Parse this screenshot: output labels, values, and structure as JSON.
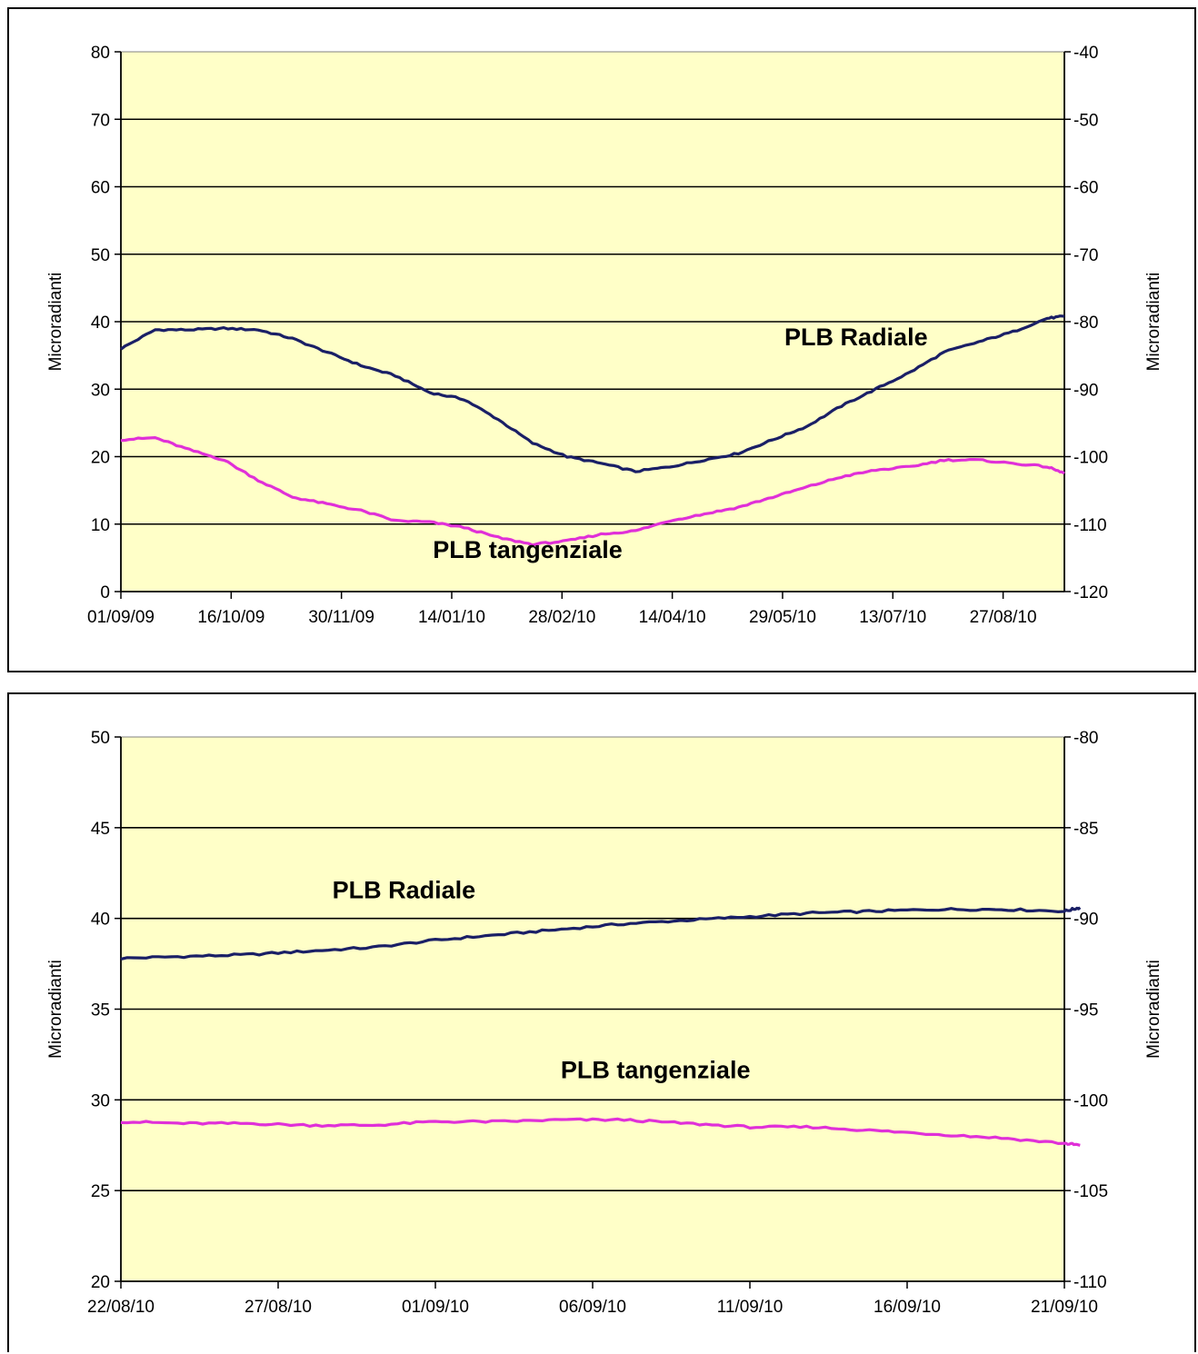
{
  "chart_data": [
    {
      "type": "line",
      "ylabel_left": "Microradianti",
      "ylabel_right": "Microradianti",
      "ylim_left": [
        0,
        80
      ],
      "ylim_right": [
        -120,
        -40
      ],
      "yticks_left": [
        "0",
        "10",
        "20",
        "30",
        "40",
        "50",
        "60",
        "70",
        "80"
      ],
      "yticks_right": [
        "-120",
        "-110",
        "-100",
        "-90",
        "-80",
        "-70",
        "-60",
        "-50",
        "-40"
      ],
      "x_range": [
        "01/09/09",
        "21/09/10"
      ],
      "xticks": [
        "01/09/09",
        "16/10/09",
        "30/11/09",
        "14/01/10",
        "28/02/10",
        "14/04/10",
        "29/05/10",
        "13/07/10",
        "27/08/10"
      ],
      "grid": true,
      "plot_background": "#ffffc8",
      "series": [
        {
          "name": "PLB Radiale",
          "color": "#1a1f66",
          "x": [
            "01/09/09",
            "15/09/09",
            "29/09/09",
            "13/10/09",
            "27/10/09",
            "10/11/09",
            "24/11/09",
            "08/12/09",
            "22/12/09",
            "05/01/10",
            "19/01/10",
            "02/02/10",
            "16/02/10",
            "02/03/10",
            "16/03/10",
            "30/03/10",
            "13/04/10",
            "27/04/10",
            "11/05/10",
            "25/05/10",
            "08/06/10",
            "22/06/10",
            "06/07/10",
            "20/07/10",
            "03/08/10",
            "17/08/10",
            "31/08/10",
            "14/09/10",
            "21/09/10"
          ],
          "y": [
            36,
            38.8,
            38.8,
            39,
            38.8,
            37.5,
            35.5,
            33.5,
            32,
            29.5,
            28.5,
            25.5,
            22,
            20,
            19,
            17.8,
            18.5,
            19.5,
            20.5,
            22.5,
            24.5,
            27.5,
            30,
            32.5,
            35.5,
            37,
            38.5,
            40.5,
            40.8
          ]
        },
        {
          "name": "PLB tangenziale",
          "color": "#e030d8",
          "x": [
            "01/09/09",
            "15/09/09",
            "29/09/09",
            "13/10/09",
            "27/10/09",
            "10/11/09",
            "24/11/09",
            "08/12/09",
            "22/12/09",
            "05/01/10",
            "19/01/10",
            "02/02/10",
            "16/02/10",
            "02/03/10",
            "16/03/10",
            "30/03/10",
            "13/04/10",
            "27/04/10",
            "11/05/10",
            "25/05/10",
            "08/06/10",
            "22/06/10",
            "06/07/10",
            "20/07/10",
            "03/08/10",
            "17/08/10",
            "31/08/10",
            "14/09/10",
            "21/09/10"
          ],
          "y": [
            22.5,
            22.8,
            21,
            19.5,
            16.5,
            14,
            13,
            12,
            10.5,
            10.3,
            9.5,
            8,
            7,
            7.5,
            8.5,
            9,
            10.5,
            11.5,
            12.5,
            14,
            15.5,
            17,
            18,
            18.5,
            19.5,
            19.5,
            19,
            18.5,
            17.5
          ]
        }
      ],
      "annotations": [
        {
          "text": "PLB Radiale",
          "x": "28/06/10",
          "y": 36.5
        },
        {
          "text": "PLB tangenziale",
          "x": "14/02/10",
          "y": 5
        }
      ]
    },
    {
      "type": "line",
      "ylabel_left": "Microradianti",
      "ylabel_right": "Microradianti",
      "ylim_left": [
        20,
        50
      ],
      "ylim_right": [
        -110,
        -80
      ],
      "yticks_left": [
        "20",
        "25",
        "30",
        "35",
        "40",
        "45",
        "50"
      ],
      "yticks_right": [
        "-110",
        "-105",
        "-100",
        "-95",
        "-90",
        "-85",
        "-80"
      ],
      "x_range": [
        "22/08/10",
        "21/09/10"
      ],
      "xticks": [
        "22/08/10",
        "27/08/10",
        "01/09/10",
        "06/09/10",
        "11/09/10",
        "16/09/10",
        "21/09/10"
      ],
      "grid": true,
      "plot_background": "#ffffc8",
      "series": [
        {
          "name": "PLB Radiale",
          "color": "#1a1f66",
          "x": [
            "22/08/10",
            "24/08/10",
            "26/08/10",
            "28/08/10",
            "30/08/10",
            "01/09/10",
            "03/09/10",
            "05/09/10",
            "07/09/10",
            "09/09/10",
            "11/09/10",
            "13/09/10",
            "15/09/10",
            "17/09/10",
            "19/09/10",
            "21/09/10",
            "21/09/10 12:00"
          ],
          "y": [
            37.8,
            37.9,
            38.0,
            38.2,
            38.4,
            38.8,
            39.1,
            39.4,
            39.7,
            39.9,
            40.1,
            40.3,
            40.4,
            40.5,
            40.5,
            40.4,
            40.6
          ]
        },
        {
          "name": "PLB tangenziale",
          "color": "#e030d8",
          "x": [
            "22/08/10",
            "24/08/10",
            "26/08/10",
            "28/08/10",
            "30/08/10",
            "01/09/10",
            "03/09/10",
            "05/09/10",
            "07/09/10",
            "09/09/10",
            "11/09/10",
            "13/09/10",
            "15/09/10",
            "17/09/10",
            "19/09/10",
            "21/09/10",
            "21/09/10 12:00"
          ],
          "y": [
            28.8,
            28.7,
            28.7,
            28.6,
            28.6,
            28.8,
            28.8,
            28.9,
            28.9,
            28.7,
            28.5,
            28.5,
            28.3,
            28.1,
            27.9,
            27.6,
            27.5
          ]
        }
      ],
      "annotations": [
        {
          "text": "PLB Radiale",
          "x": "31/08/10",
          "y": 41.1
        },
        {
          "text": "PLB tangenziale",
          "x": "08/09/10",
          "y": 31.2
        }
      ]
    }
  ]
}
